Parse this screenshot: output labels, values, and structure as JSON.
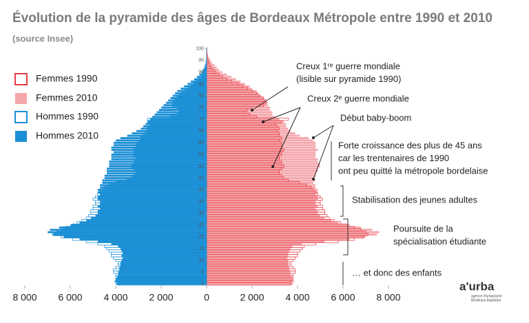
{
  "chart_data": {
    "type": "pyramid",
    "title": "Évolution de la pyramide des âges de Bordeaux Métropole entre 1990 et 2010",
    "subtitle": "(source Insee)",
    "categories": [
      0,
      1,
      2,
      3,
      4,
      5,
      6,
      7,
      8,
      9,
      10,
      11,
      12,
      13,
      14,
      15,
      16,
      17,
      18,
      19,
      20,
      21,
      22,
      23,
      24,
      25,
      26,
      27,
      28,
      29,
      30,
      31,
      32,
      33,
      34,
      35,
      36,
      37,
      38,
      39,
      40,
      41,
      42,
      43,
      44,
      45,
      46,
      47,
      48,
      49,
      50,
      51,
      52,
      53,
      54,
      55,
      56,
      57,
      58,
      59,
      60,
      61,
      62,
      63,
      64,
      65,
      66,
      67,
      68,
      69,
      70,
      71,
      72,
      73,
      74,
      75,
      76,
      77,
      78,
      79,
      80,
      81,
      82,
      83,
      84,
      85,
      86,
      87,
      88,
      89,
      90,
      91,
      92,
      93,
      94,
      95,
      96,
      97,
      98,
      99,
      100
    ],
    "ylim": [
      -0.5,
      100.5
    ],
    "yticks": [
      0,
      5,
      10,
      15,
      20,
      25,
      30,
      35,
      40,
      45,
      50,
      55,
      60,
      65,
      70,
      75,
      80,
      85,
      90,
      95,
      100
    ],
    "xlim": [
      -8000,
      8000
    ],
    "xticks": [
      {
        "value": -8000,
        "label": "8 000"
      },
      {
        "value": -6000,
        "label": "6 000"
      },
      {
        "value": -4000,
        "label": "4 000"
      },
      {
        "value": -2000,
        "label": "2 000"
      },
      0,
      {
        "value": 2000,
        "label": "2 000"
      },
      {
        "value": 4000,
        "label": "4 000"
      },
      {
        "value": 6000,
        "label": "6 000"
      },
      {
        "value": 8000,
        "label": "8 000"
      }
    ],
    "series": [
      {
        "name": "Femmes 2010",
        "color": "#f4a5aa",
        "style": "fill",
        "values": [
          3800,
          3850,
          3800,
          3750,
          3700,
          3700,
          3650,
          3650,
          3600,
          3600,
          3600,
          3550,
          3600,
          3600,
          3650,
          3700,
          3800,
          4200,
          5200,
          6300,
          7000,
          7500,
          7600,
          7300,
          6800,
          6300,
          5800,
          5500,
          5200,
          5000,
          4900,
          4900,
          4800,
          4900,
          4800,
          4800,
          4900,
          4900,
          4800,
          4900,
          4900,
          4800,
          4800,
          4700,
          4800,
          4700,
          4800,
          4800,
          4900,
          4900,
          5000,
          5000,
          4900,
          4900,
          4800,
          4800,
          4800,
          4900,
          4800,
          4800,
          4800,
          4700,
          4500,
          4100,
          3900,
          3700,
          3600,
          3500,
          3500,
          3400,
          3200,
          3000,
          2900,
          2900,
          2800,
          2800,
          2700,
          2700,
          2600,
          2500,
          2400,
          2300,
          2200,
          2000,
          1900,
          1700,
          1500,
          1300,
          1100,
          900,
          700,
          550,
          450,
          350,
          250,
          180,
          120,
          80,
          50,
          30,
          40
        ]
      },
      {
        "name": "Femmes 1990",
        "color": "#e83a43",
        "style": "outline",
        "values": [
          3700,
          3700,
          3800,
          3800,
          3800,
          3900,
          3900,
          3800,
          3700,
          3700,
          3800,
          3900,
          4000,
          4000,
          4100,
          4200,
          4300,
          4800,
          5800,
          6500,
          6900,
          7100,
          7000,
          6800,
          6500,
          6200,
          5900,
          5600,
          5400,
          5300,
          5200,
          5200,
          5100,
          5100,
          5000,
          5000,
          5100,
          5000,
          4900,
          4800,
          4700,
          4600,
          4400,
          4100,
          3600,
          3400,
          3300,
          3200,
          3200,
          3300,
          3400,
          3300,
          3300,
          3200,
          3200,
          3300,
          3300,
          3400,
          3300,
          3300,
          3300,
          3200,
          3300,
          3200,
          3200,
          3100,
          3200,
          3100,
          3000,
          3300,
          3600,
          2200,
          1900,
          1700,
          1800,
          2000,
          2500,
          2600,
          2600,
          2500,
          2300,
          2200,
          2000,
          1800,
          1600,
          1400,
          1100,
          900,
          700,
          550,
          400,
          300,
          200,
          150,
          100,
          70,
          40,
          25,
          15,
          10,
          5
        ]
      },
      {
        "name": "Hommes 2010",
        "color": "#1b8fd5",
        "style": "fill",
        "values": [
          -4000,
          -4050,
          -4000,
          -3950,
          -3900,
          -3900,
          -3850,
          -3850,
          -3800,
          -3800,
          -3750,
          -3700,
          -3750,
          -3700,
          -3750,
          -3800,
          -3900,
          -4200,
          -4800,
          -5600,
          -6300,
          -6800,
          -7000,
          -6900,
          -6500,
          -6000,
          -5600,
          -5300,
          -5100,
          -4900,
          -4800,
          -4800,
          -4700,
          -4800,
          -4700,
          -4700,
          -4800,
          -4800,
          -4700,
          -4800,
          -4800,
          -4700,
          -4700,
          -4600,
          -4600,
          -4500,
          -4500,
          -4400,
          -4400,
          -4400,
          -4300,
          -4300,
          -4300,
          -4200,
          -4200,
          -4200,
          -4100,
          -4200,
          -4200,
          -4100,
          -4100,
          -4000,
          -3800,
          -3500,
          -3300,
          -3100,
          -2900,
          -2800,
          -2700,
          -2600,
          -2500,
          -2400,
          -2300,
          -2200,
          -2100,
          -2000,
          -1900,
          -1800,
          -1700,
          -1600,
          -1500,
          -1400,
          -1300,
          -1150,
          -1000,
          -850,
          -700,
          -560,
          -440,
          -330,
          -240,
          -170,
          -120,
          -80,
          -55,
          -35,
          -20,
          -12,
          -8,
          -5,
          -3
        ]
      },
      {
        "name": "Hommes 1990",
        "color": "#1b8fd5",
        "style": "outline",
        "values": [
          -3900,
          -3900,
          -4000,
          -4000,
          -4000,
          -4100,
          -4100,
          -4000,
          -3900,
          -3900,
          -4000,
          -4100,
          -4200,
          -4200,
          -4300,
          -4400,
          -4500,
          -4800,
          -5300,
          -5900,
          -6400,
          -6700,
          -6600,
          -6400,
          -6200,
          -5900,
          -5700,
          -5500,
          -5300,
          -5200,
          -5100,
          -5100,
          -5000,
          -5000,
          -4900,
          -4900,
          -5000,
          -4900,
          -4800,
          -4700,
          -4600,
          -4500,
          -4300,
          -4000,
          -3500,
          -3300,
          -3200,
          -3100,
          -3100,
          -3200,
          -3300,
          -3200,
          -3200,
          -3100,
          -3100,
          -3200,
          -3200,
          -3200,
          -3100,
          -3100,
          -3000,
          -2900,
          -2900,
          -2800,
          -2700,
          -2600,
          -2600,
          -2500,
          -2500,
          -2600,
          -2600,
          -1600,
          -1300,
          -1200,
          -1200,
          -1300,
          -1500,
          -1500,
          -1400,
          -1300,
          -1200,
          -1100,
          -950,
          -800,
          -680,
          -560,
          -440,
          -330,
          -240,
          -170,
          -110,
          -70,
          -45,
          -30,
          -18,
          -10,
          -6,
          -3,
          -2,
          -1,
          -1
        ]
      }
    ],
    "legend_order": [
      1,
      0,
      3,
      2
    ],
    "annotations": [
      [
        "Creux 1ʳᵉ guerre mondiale",
        "(lisible sur pyramide 1990)"
      ],
      [
        "Creux 2ᵉ guerre mondiale"
      ],
      [
        "Début baby-boom"
      ],
      [
        "Forte croissance des plus de 45 ans",
        "car les trentenaires de 1990",
        "ont peu quitté la métropole bordelaise"
      ],
      [
        "Stabilisation des jeunes adultes"
      ],
      [
        "Poursuite de la",
        "spécialisation étudiante"
      ],
      [
        "… et donc des enfants"
      ]
    ],
    "logo": "a'urba",
    "logo_sub": [
      "agence d'urbanisme",
      "Bordeaux Aquitaine"
    ]
  }
}
